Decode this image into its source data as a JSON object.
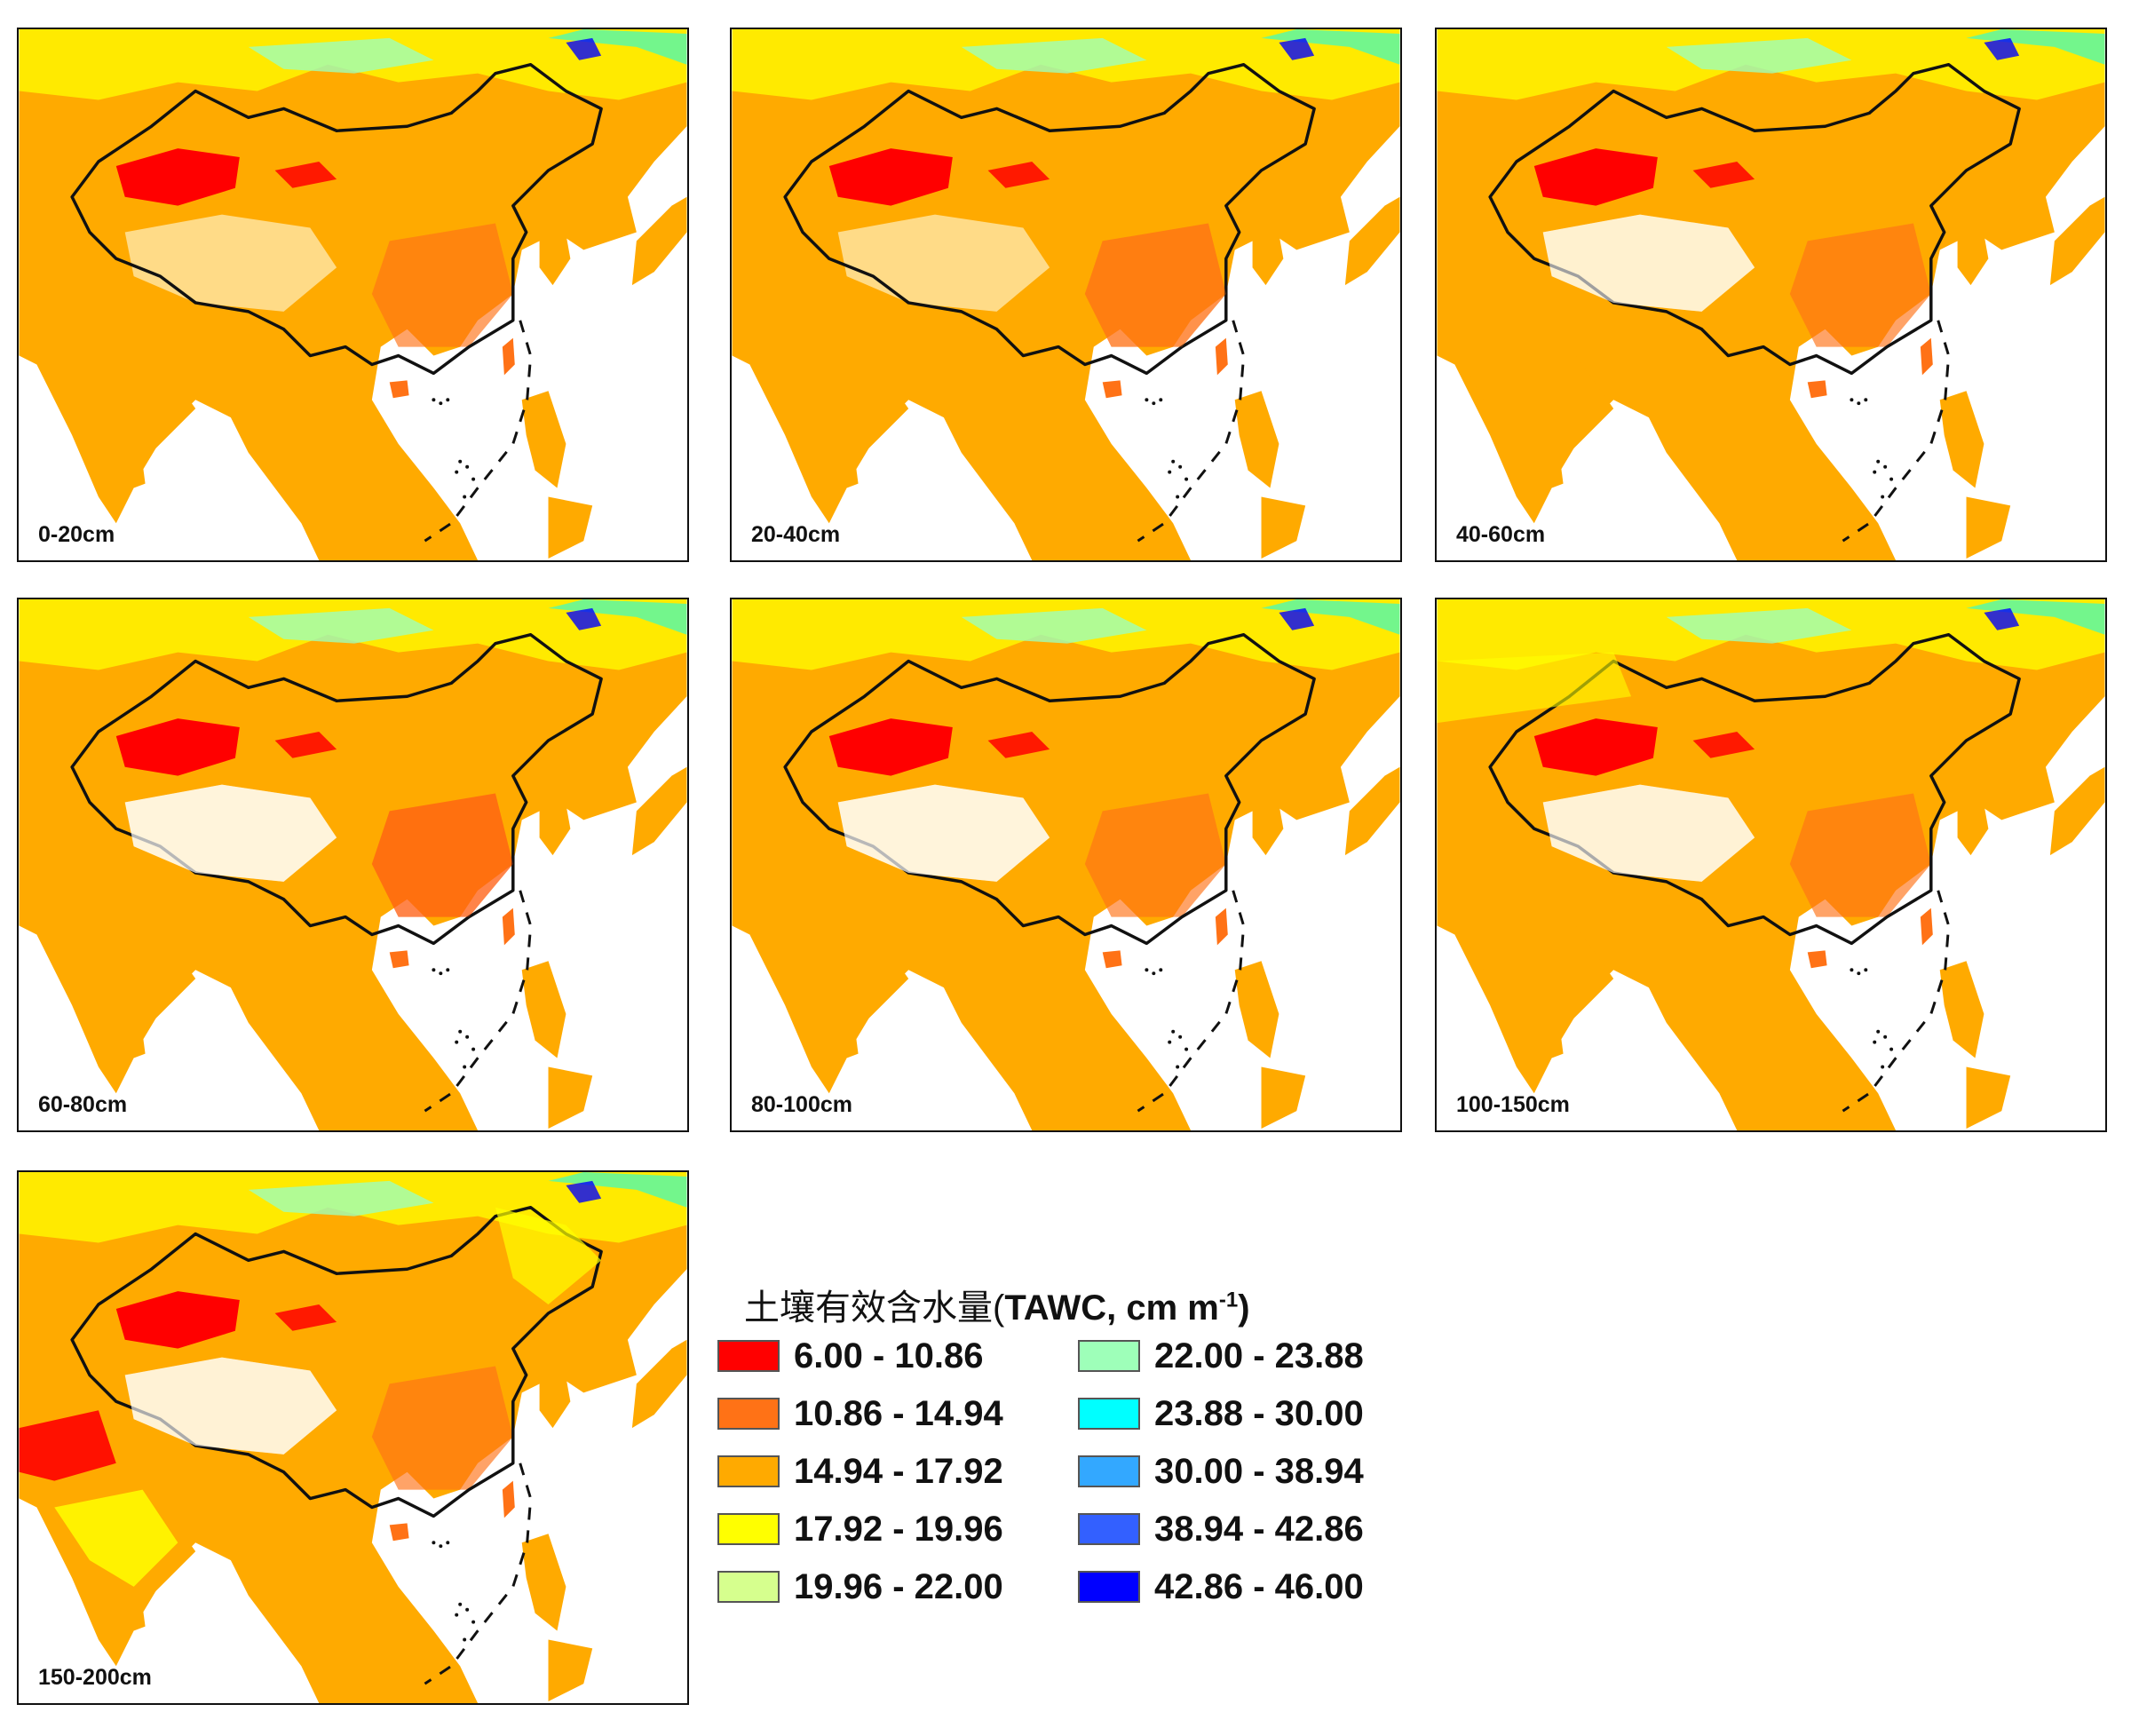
{
  "panels": [
    {
      "depth": "0-20cm"
    },
    {
      "depth": "20-40cm"
    },
    {
      "depth": "40-60cm"
    },
    {
      "depth": "60-80cm"
    },
    {
      "depth": "80-100cm"
    },
    {
      "depth": "100-150cm"
    },
    {
      "depth": "150-200cm"
    }
  ],
  "legend": {
    "title_prefix": "土壤有效含水量(",
    "title_bold": "TAWC, cm m",
    "title_sup": "-1",
    "title_suffix": ")",
    "classes": [
      {
        "label": "6.00 - 10.86",
        "color": "#ff0000"
      },
      {
        "label": "10.86 - 14.94",
        "color": "#ff7216"
      },
      {
        "label": "14.94 - 17.92",
        "color": "#ffaa00"
      },
      {
        "label": "17.92 - 19.96",
        "color": "#ffff00"
      },
      {
        "label": "19.96 - 22.00",
        "color": "#d6ff8e"
      },
      {
        "label": "22.00 - 23.88",
        "color": "#9effb9"
      },
      {
        "label": "23.88 - 30.00",
        "color": "#00ffff"
      },
      {
        "label": "30.00 - 38.94",
        "color": "#33a8ff"
      },
      {
        "label": "38.94 - 42.86",
        "color": "#3360ff"
      },
      {
        "label": "42.86 - 46.00",
        "color": "#0000ff"
      }
    ]
  }
}
